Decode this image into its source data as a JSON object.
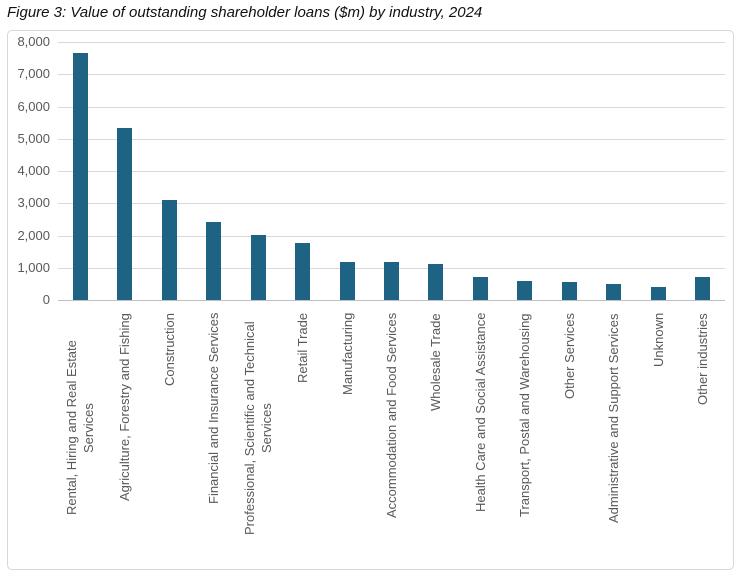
{
  "title": "Figure 3: Value of outstanding shareholder loans ($m) by industry, 2024",
  "colors": {
    "bar": "#1e6284",
    "gridline": "#d9d9d9",
    "axis_line": "#bfbfbf",
    "label_text": "#595959",
    "chart_border": "#d8d8d8"
  },
  "chart_data": {
    "type": "bar",
    "title": "Figure 3: Value of outstanding shareholder loans ($m) by industry, 2024",
    "xlabel": "",
    "ylabel": "",
    "ylim": [
      0,
      8000
    ],
    "ytick_interval": 1000,
    "ytick_labels_top_to_bottom": [
      "8,000",
      "7,000",
      "6,000",
      "5,000",
      "4,000",
      "3,000",
      "2,000",
      "1,000",
      "0"
    ],
    "grid": true,
    "legend": false,
    "categories": [
      "Rental, Hiring and Real Estate\nServices",
      "Agriculture, Forestry and Fishing",
      "Construction",
      "Financial and Insurance Services",
      "Professional, Scientific and Technical\nServices",
      "Retail Trade",
      "Manufacturing",
      "Accommodation and Food Services",
      "Wholesale Trade",
      "Health Care and Social Assistance",
      "Transport, Postal and Warehousing",
      "Other Services",
      "Administrative and Support Services",
      "Unknown",
      "Other industries"
    ],
    "values": [
      7650,
      5320,
      3110,
      2410,
      2020,
      1780,
      1190,
      1170,
      1130,
      700,
      580,
      565,
      500,
      400,
      715
    ]
  }
}
